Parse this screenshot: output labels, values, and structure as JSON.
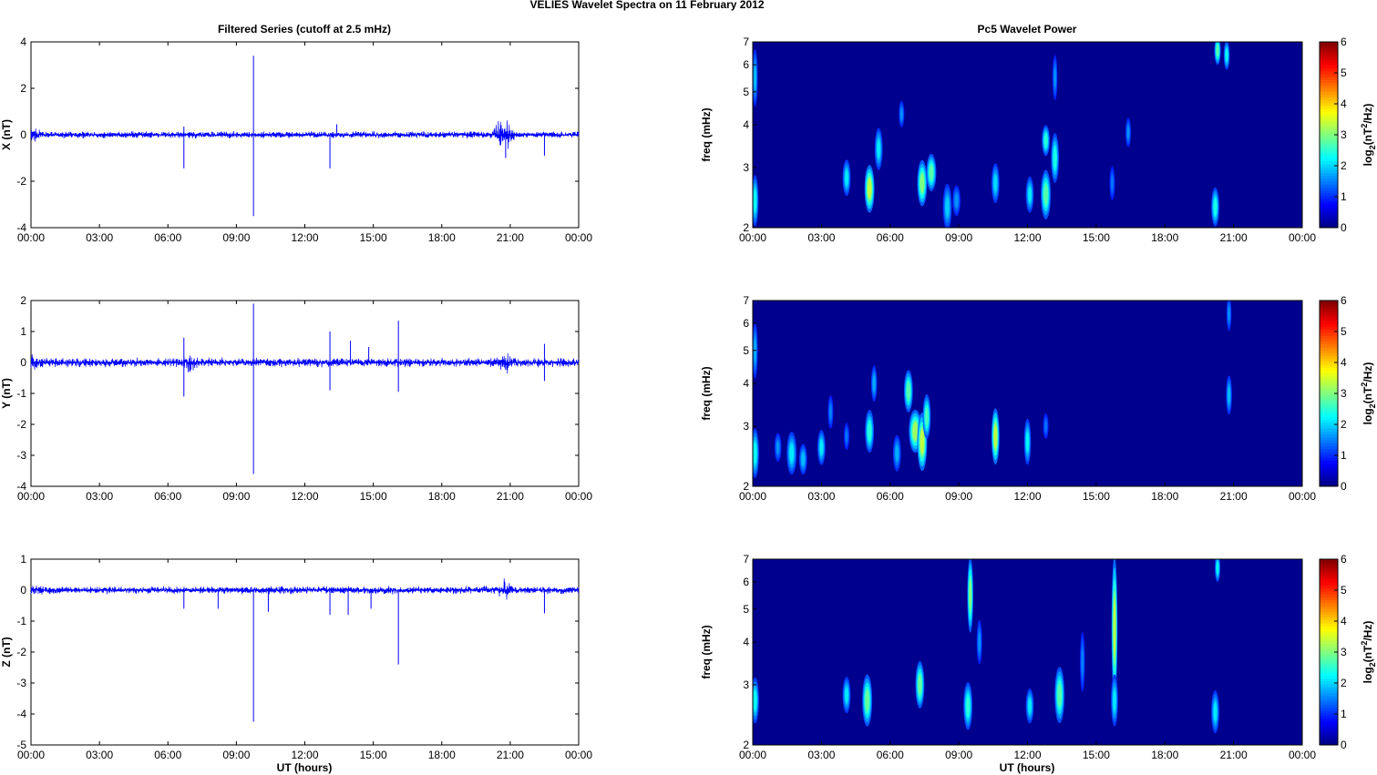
{
  "figure": {
    "suptitle": "VELIES Wavelet Spectra on 11 February  2012",
    "left_title": "Filtered Series (cutoff at 2.5 mHz)",
    "right_title": "Pc5 Wavelet Power",
    "xlabel": "UT (hours)"
  },
  "chart_data": [
    {
      "type": "line",
      "name": "X filtered series",
      "ylabel": "X (nT)",
      "xlim": [
        0,
        24
      ],
      "ylim": [
        -4,
        4
      ],
      "x_ticks": [
        "00:00",
        "03:00",
        "06:00",
        "09:00",
        "12:00",
        "15:00",
        "18:00",
        "21:00",
        "00:00"
      ],
      "y_ticks": [
        -4,
        -2,
        0,
        2,
        4
      ],
      "series_color": "#0000ff",
      "noise_amplitude": 0.12,
      "bursts": [
        [
          0.2,
          0.5
        ],
        [
          20.6,
          0.9
        ],
        [
          20.9,
          0.5
        ]
      ],
      "spikes": [
        [
          6.7,
          -1.45
        ],
        [
          6.7,
          0.35
        ],
        [
          9.75,
          3.4
        ],
        [
          9.75,
          -3.5
        ],
        [
          13.1,
          -1.45
        ],
        [
          13.4,
          0.45
        ],
        [
          20.8,
          -1.0
        ],
        [
          22.5,
          -0.9
        ]
      ]
    },
    {
      "type": "line",
      "name": "Y filtered series",
      "ylabel": "Y (nT)",
      "xlim": [
        0,
        24
      ],
      "ylim": [
        -4,
        2
      ],
      "x_ticks": [
        "00:00",
        "03:00",
        "06:00",
        "09:00",
        "12:00",
        "15:00",
        "18:00",
        "21:00",
        "00:00"
      ],
      "y_ticks": [
        -4,
        -3,
        -2,
        -1,
        0,
        1,
        2
      ],
      "series_color": "#0000ff",
      "noise_amplitude": 0.12,
      "bursts": [
        [
          0.2,
          0.3
        ],
        [
          7.0,
          0.35
        ],
        [
          20.8,
          0.3
        ]
      ],
      "spikes": [
        [
          6.7,
          0.8
        ],
        [
          6.7,
          -1.1
        ],
        [
          9.75,
          1.9
        ],
        [
          9.75,
          -3.6
        ],
        [
          13.1,
          1.0
        ],
        [
          13.1,
          -0.9
        ],
        [
          14.0,
          0.7
        ],
        [
          14.8,
          0.5
        ],
        [
          16.1,
          1.35
        ],
        [
          16.1,
          -0.95
        ],
        [
          22.5,
          0.6
        ],
        [
          22.5,
          -0.6
        ]
      ]
    },
    {
      "type": "line",
      "name": "Z filtered series",
      "ylabel": "Z (nT)",
      "xlim": [
        0,
        24
      ],
      "ylim": [
        -5,
        1
      ],
      "x_ticks": [
        "00:00",
        "03:00",
        "06:00",
        "09:00",
        "12:00",
        "15:00",
        "18:00",
        "21:00",
        "00:00"
      ],
      "y_ticks": [
        -5,
        -4,
        -3,
        -2,
        -1,
        0,
        1
      ],
      "series_color": "#0000ff",
      "noise_amplitude": 0.1,
      "bursts": [
        [
          0.2,
          0.3
        ],
        [
          20.8,
          0.45
        ]
      ],
      "spikes": [
        [
          6.7,
          -0.6
        ],
        [
          8.2,
          -0.6
        ],
        [
          9.75,
          -4.25
        ],
        [
          10.4,
          -0.7
        ],
        [
          13.1,
          -0.8
        ],
        [
          13.9,
          -0.8
        ],
        [
          14.9,
          -0.6
        ],
        [
          16.1,
          -2.4
        ],
        [
          22.5,
          -0.75
        ]
      ]
    },
    {
      "type": "heatmap",
      "name": "X wavelet power",
      "ylabel": "freq (mHz)",
      "yscale": "log",
      "xlim": [
        0,
        24
      ],
      "ylim": [
        2,
        7
      ],
      "x_ticks": [
        "00:00",
        "03:00",
        "06:00",
        "09:00",
        "12:00",
        "15:00",
        "18:00",
        "21:00",
        "00:00"
      ],
      "y_ticks": [
        2,
        3,
        4,
        5,
        6,
        7
      ],
      "colorbar": {
        "label": "log2(nT²/Hz)",
        "label_base": "log",
        "label_sub": "2",
        "label_mid": "(nT",
        "label_sup": "2",
        "label_end": "/Hz)",
        "range": [
          0,
          6
        ],
        "ticks": [
          0,
          1,
          2,
          3,
          4,
          5,
          6
        ]
      },
      "background": "#00008f",
      "blobs": [
        [
          0.1,
          2.4,
          0.08,
          0.35,
          1.8
        ],
        [
          0.1,
          5.5,
          0.05,
          0.9,
          1.3
        ],
        [
          4.1,
          2.8,
          0.1,
          0.28,
          1.6
        ],
        [
          5.1,
          2.6,
          0.14,
          0.35,
          3.0
        ],
        [
          5.5,
          3.4,
          0.1,
          0.4,
          1.6
        ],
        [
          6.5,
          4.3,
          0.05,
          0.3,
          1.0
        ],
        [
          7.4,
          2.7,
          0.14,
          0.35,
          2.6
        ],
        [
          7.8,
          2.9,
          0.14,
          0.3,
          2.3
        ],
        [
          8.5,
          2.3,
          0.12,
          0.3,
          1.4
        ],
        [
          8.9,
          2.4,
          0.1,
          0.2,
          1.0
        ],
        [
          10.6,
          2.7,
          0.1,
          0.3,
          1.5
        ],
        [
          12.1,
          2.5,
          0.1,
          0.25,
          1.6
        ],
        [
          12.8,
          2.5,
          0.14,
          0.35,
          2.3
        ],
        [
          12.8,
          3.6,
          0.1,
          0.3,
          2.0
        ],
        [
          13.2,
          3.2,
          0.1,
          0.45,
          1.9
        ],
        [
          13.2,
          5.5,
          0.04,
          0.7,
          1.0
        ],
        [
          15.7,
          2.7,
          0.05,
          0.25,
          0.8
        ],
        [
          16.4,
          3.8,
          0.05,
          0.3,
          1.0
        ],
        [
          20.2,
          2.3,
          0.1,
          0.25,
          1.9
        ],
        [
          20.3,
          6.6,
          0.07,
          0.5,
          2.3
        ],
        [
          20.7,
          6.4,
          0.06,
          0.5,
          1.8
        ]
      ]
    },
    {
      "type": "heatmap",
      "name": "Y wavelet power",
      "ylabel": "freq (mHz)",
      "yscale": "log",
      "xlim": [
        0,
        24
      ],
      "ylim": [
        2,
        7
      ],
      "x_ticks": [
        "00:00",
        "03:00",
        "06:00",
        "09:00",
        "12:00",
        "15:00",
        "18:00",
        "21:00",
        "00:00"
      ],
      "y_ticks": [
        2,
        3,
        4,
        5,
        6,
        7
      ],
      "colorbar": {
        "label": "log2(nT²/Hz)",
        "label_base": "log",
        "label_sub": "2",
        "label_mid": "(nT",
        "label_sup": "2",
        "label_end": "/Hz)",
        "range": [
          0,
          6
        ],
        "ticks": [
          0,
          1,
          2,
          3,
          4,
          5,
          6
        ]
      },
      "background": "#00008f",
      "blobs": [
        [
          0.1,
          2.5,
          0.1,
          0.35,
          1.8
        ],
        [
          0.1,
          5.0,
          0.05,
          0.8,
          1.2
        ],
        [
          1.1,
          2.6,
          0.08,
          0.2,
          1.0
        ],
        [
          1.7,
          2.5,
          0.14,
          0.3,
          1.6
        ],
        [
          2.2,
          2.4,
          0.1,
          0.2,
          1.3
        ],
        [
          3.0,
          2.6,
          0.1,
          0.25,
          1.6
        ],
        [
          3.4,
          3.3,
          0.05,
          0.3,
          0.9
        ],
        [
          4.1,
          2.8,
          0.05,
          0.2,
          0.8
        ],
        [
          5.1,
          2.9,
          0.12,
          0.35,
          2.0
        ],
        [
          5.3,
          4.0,
          0.06,
          0.4,
          1.2
        ],
        [
          6.3,
          2.5,
          0.1,
          0.25,
          1.2
        ],
        [
          6.8,
          3.8,
          0.12,
          0.45,
          2.3
        ],
        [
          7.1,
          2.9,
          0.2,
          0.35,
          2.8
        ],
        [
          7.4,
          2.7,
          0.14,
          0.45,
          3.0
        ],
        [
          7.6,
          3.2,
          0.1,
          0.4,
          2.2
        ],
        [
          10.6,
          2.8,
          0.1,
          0.45,
          3.0
        ],
        [
          12.0,
          2.7,
          0.08,
          0.35,
          1.7
        ],
        [
          12.8,
          3.0,
          0.05,
          0.2,
          0.8
        ],
        [
          20.8,
          3.7,
          0.06,
          0.4,
          1.3
        ],
        [
          20.8,
          6.4,
          0.04,
          0.6,
          1.0
        ]
      ]
    },
    {
      "type": "heatmap",
      "name": "Z wavelet power",
      "ylabel": "freq (mHz)",
      "yscale": "log",
      "xlim": [
        0,
        24
      ],
      "ylim": [
        2,
        7
      ],
      "x_ticks": [
        "00:00",
        "03:00",
        "06:00",
        "09:00",
        "12:00",
        "15:00",
        "18:00",
        "21:00",
        "00:00"
      ],
      "y_ticks": [
        2,
        3,
        4,
        5,
        6,
        7
      ],
      "colorbar": {
        "label": "log2(nT²/Hz)",
        "label_base": "log",
        "label_sub": "2",
        "label_mid": "(nT",
        "label_sup": "2",
        "label_end": "/Hz)",
        "range": [
          0,
          6
        ],
        "ticks": [
          0,
          1,
          2,
          3,
          4,
          5,
          6
        ]
      },
      "background": "#00008f",
      "blobs": [
        [
          0.1,
          2.7,
          0.1,
          0.35,
          1.8
        ],
        [
          4.1,
          2.8,
          0.1,
          0.28,
          1.6
        ],
        [
          5.0,
          2.7,
          0.14,
          0.4,
          2.4
        ],
        [
          7.3,
          3.0,
          0.12,
          0.4,
          2.4
        ],
        [
          9.4,
          2.6,
          0.12,
          0.35,
          2.0
        ],
        [
          9.5,
          5.5,
          0.06,
          1.2,
          2.6
        ],
        [
          9.9,
          4.0,
          0.05,
          0.5,
          1.0
        ],
        [
          12.1,
          2.6,
          0.1,
          0.25,
          1.6
        ],
        [
          13.4,
          2.8,
          0.14,
          0.45,
          2.3
        ],
        [
          14.4,
          3.5,
          0.04,
          0.6,
          0.9
        ],
        [
          15.8,
          4.4,
          0.06,
          1.8,
          3.0
        ],
        [
          15.8,
          2.7,
          0.08,
          0.4,
          1.6
        ],
        [
          20.2,
          2.5,
          0.1,
          0.3,
          1.6
        ],
        [
          20.3,
          6.6,
          0.05,
          0.5,
          1.8
        ]
      ]
    }
  ]
}
